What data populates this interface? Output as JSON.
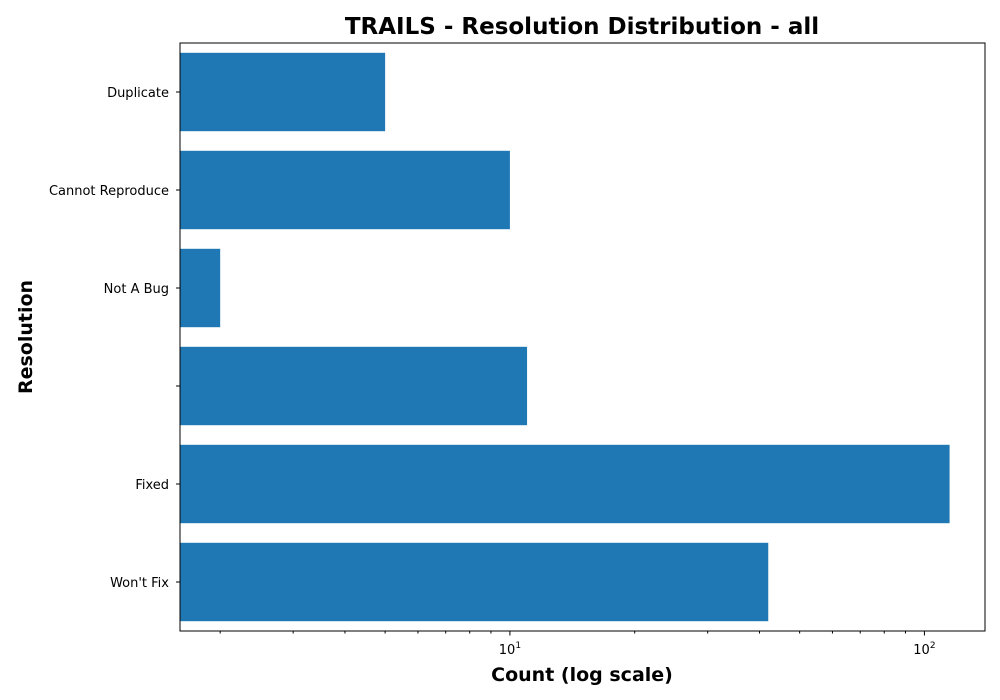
{
  "chart_data": {
    "type": "bar",
    "orientation": "horizontal",
    "title": "TRAILS - Resolution Distribution - all",
    "xlabel": "Count (log scale)",
    "ylabel": "Resolution",
    "x_scale": "log",
    "xlim": [
      1.6,
      140
    ],
    "x_ticks": [
      {
        "value": 10,
        "base": "10",
        "exponent": "1"
      },
      {
        "value": 100,
        "base": "10",
        "exponent": "2"
      }
    ],
    "categories": [
      "Duplicate",
      "Cannot Reproduce",
      "Not A Bug",
      "",
      "Fixed",
      "Won't Fix"
    ],
    "values": [
      5,
      10,
      2,
      11,
      115,
      42
    ],
    "bar_color": "#1f77b4",
    "grid": false,
    "legend": "none"
  }
}
